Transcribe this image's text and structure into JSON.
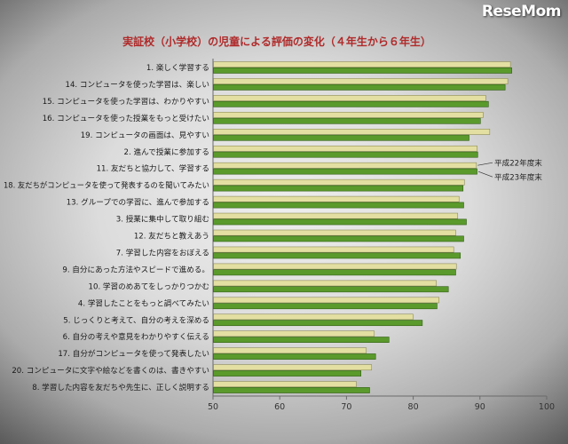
{
  "logo": {
    "text": "ReseMom"
  },
  "chart_data": {
    "type": "bar",
    "orientation": "horizontal",
    "title": "実証校（小学校）の児童による評価の変化（４年生から６年生）",
    "categories": [
      "1. 楽しく学習する",
      "14. コンピュータを使った学習は、楽しい",
      "15. コンピュータを使った学習は、わかりやすい",
      "16. コンピュータを使った授業をもっと受けたい",
      "19. コンピュータの画面は、見やすい",
      "2. 進んで授業に参加する",
      "11. 友だちと協力して、学習する",
      "18. 友だちがコンピュータを使って発表するのを聞いてみたい",
      "13. グループでの学習に、進んで参加する",
      "3. 授業に集中して取り組む",
      "12. 友だちと教えあう",
      "7. 学習した内容をおぼえる",
      "9. 自分にあった方法やスピードで進める。",
      "10. 学習のめあてをしっかりつかむ",
      "4. 学習したことをもっと調べてみたい",
      "5. じっくりと考えて、自分の考えを深める",
      "6. 自分の考えや意見をわかりやすく伝える",
      "17. 自分がコンピュータを使って発表したい",
      "20. コンピュータに文字や絵などを書くのは、書きやすい",
      "8. 学習した内容を友だちや先生に、正しく説明する"
    ],
    "series": [
      {
        "name": "平成22年度末",
        "color": "#e3dfa2",
        "stroke": "#8d8b58",
        "values": [
          94.5,
          94.1,
          90.8,
          90.4,
          91.4,
          89.5,
          89.4,
          87.6,
          86.8,
          86.6,
          86.3,
          86.0,
          86.4,
          83.4,
          83.8,
          79.9,
          74.1,
          72.9,
          73.7,
          71.4
        ]
      },
      {
        "name": "平成23年度末",
        "color": "#5a9a2c",
        "stroke": "#345f18",
        "values": [
          94.7,
          93.7,
          91.2,
          90.0,
          88.3,
          89.6,
          89.5,
          87.4,
          87.5,
          87.9,
          87.5,
          87.0,
          86.3,
          85.2,
          83.5,
          81.3,
          76.3,
          74.3,
          72.1,
          73.4
        ]
      }
    ],
    "xlim": [
      50,
      100
    ],
    "xticks": [
      50,
      60,
      70,
      80,
      90,
      100
    ],
    "grid": false,
    "legend": "right"
  }
}
